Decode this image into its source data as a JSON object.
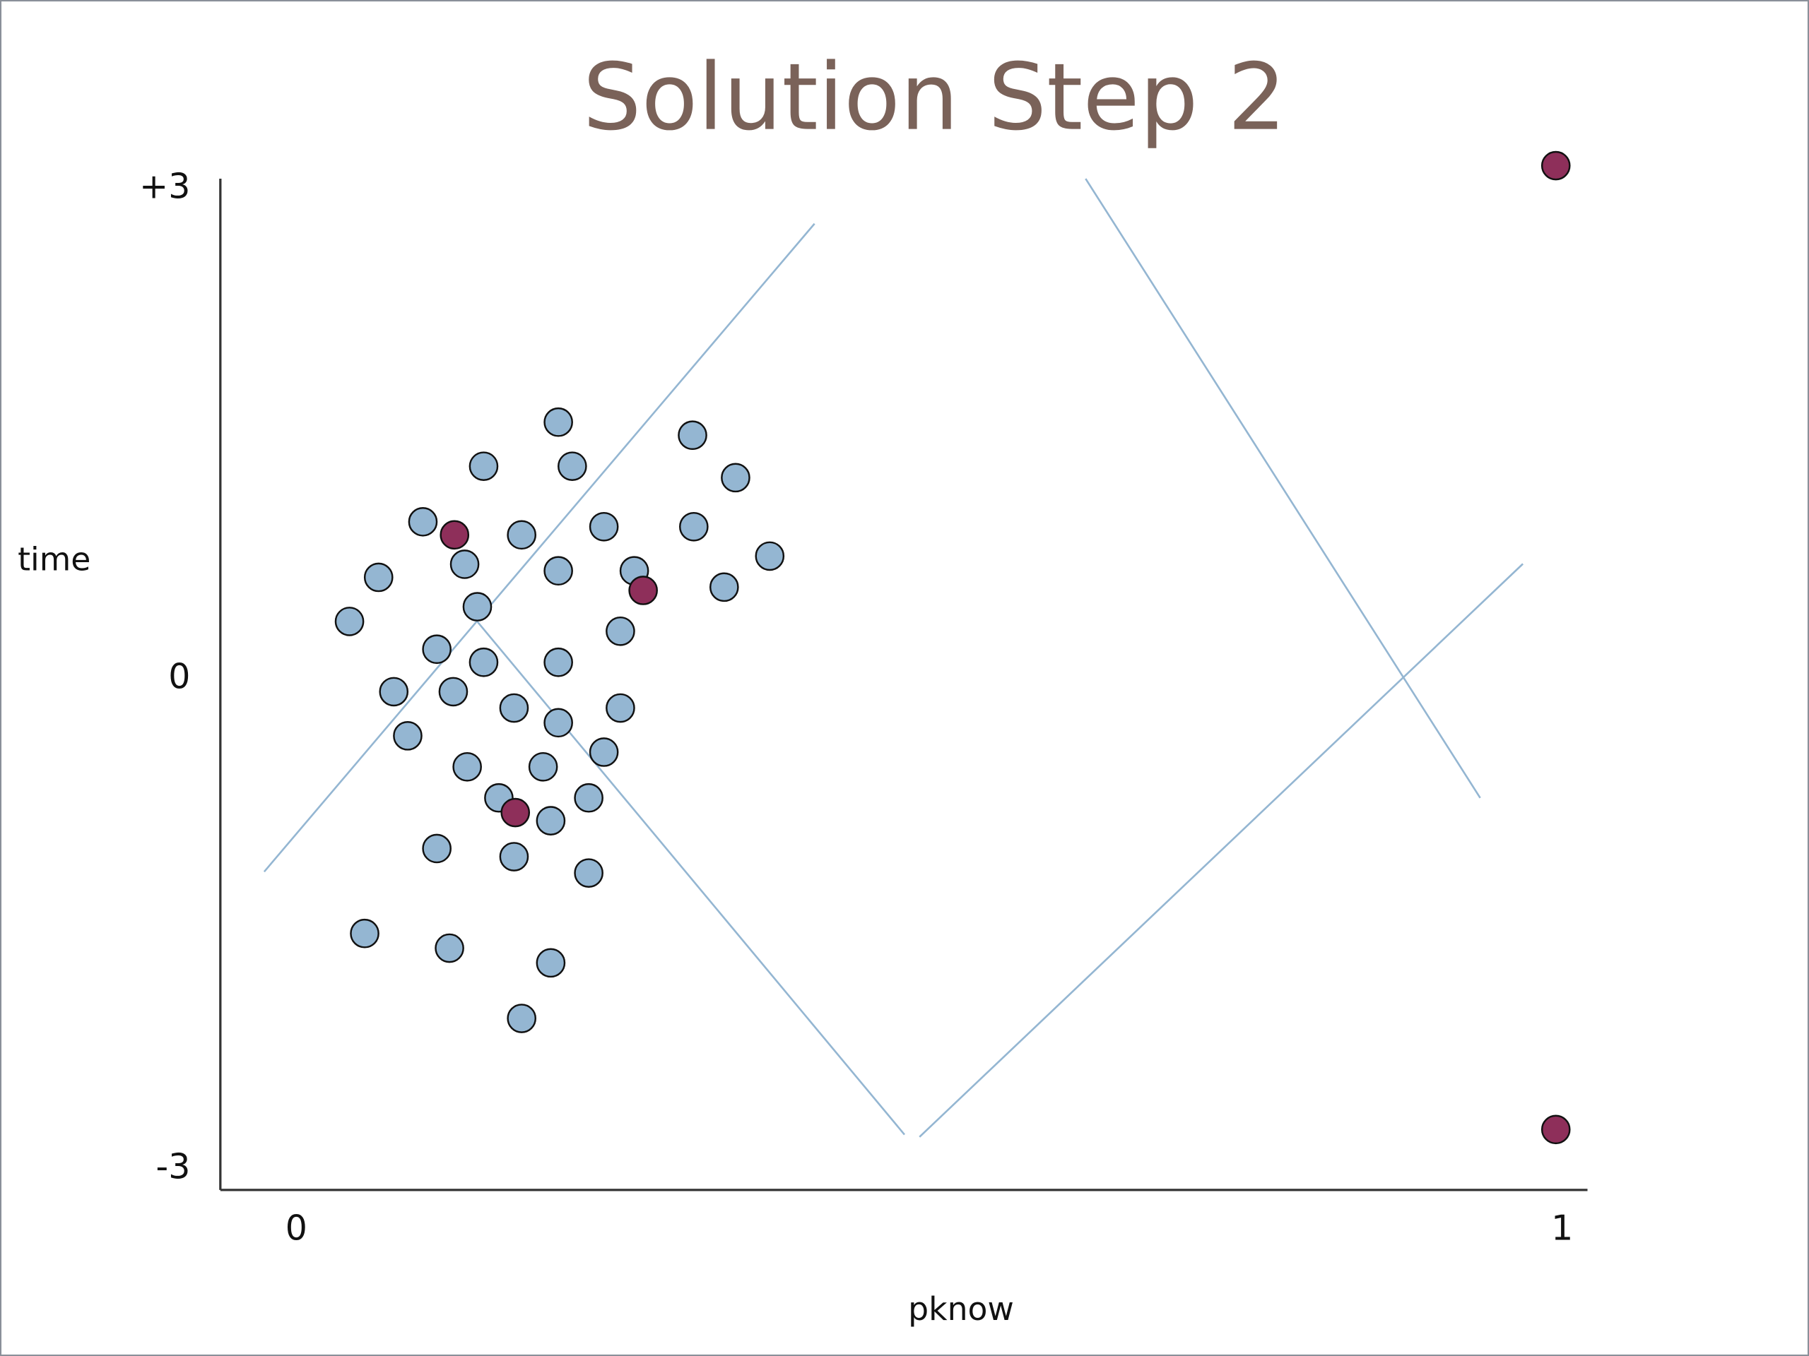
{
  "chart_data": {
    "type": "scatter",
    "title": "Solution Step 2",
    "x_label": "pknow",
    "y_label": "time",
    "xlim": [
      -0.06,
      1.02
    ],
    "ylim": [
      -3.13,
      3.06
    ],
    "xticks": [
      0,
      1
    ],
    "yticks": [
      {
        "value": 3,
        "label": "+3"
      },
      0,
      -3
    ],
    "series": [
      {
        "color": "#94b6d2",
        "x": [
          0.207,
          0.313,
          0.148,
          0.218,
          0.347,
          0.1,
          0.178,
          0.243,
          0.314,
          0.065,
          0.133,
          0.207,
          0.267,
          0.338,
          0.374,
          0.143,
          0.042,
          0.256,
          0.111,
          0.148,
          0.207,
          0.077,
          0.124,
          0.172,
          0.207,
          0.256,
          0.088,
          0.135,
          0.195,
          0.243,
          0.16,
          0.231,
          0.201,
          0.111,
          0.172,
          0.231,
          0.054,
          0.121,
          0.201,
          0.178
        ],
        "values": [
          1.57,
          1.49,
          1.3,
          1.3,
          1.23,
          0.96,
          0.88,
          0.93,
          0.93,
          0.62,
          0.7,
          0.66,
          0.66,
          0.56,
          0.75,
          0.44,
          0.35,
          0.29,
          0.18,
          0.1,
          0.1,
          -0.08,
          -0.08,
          -0.18,
          -0.27,
          -0.18,
          -0.35,
          -0.54,
          -0.54,
          -0.45,
          -0.73,
          -0.73,
          -0.87,
          -1.04,
          -1.09,
          -1.19,
          -1.56,
          -1.65,
          -1.74,
          -2.08
        ]
      },
      {
        "color": "#8e2f5a",
        "x": [
          0.125,
          0.274,
          0.173,
          0.995,
          0.995
        ],
        "values": [
          0.88,
          0.54,
          -0.82,
          3.14,
          -2.76
        ]
      }
    ]
  }
}
